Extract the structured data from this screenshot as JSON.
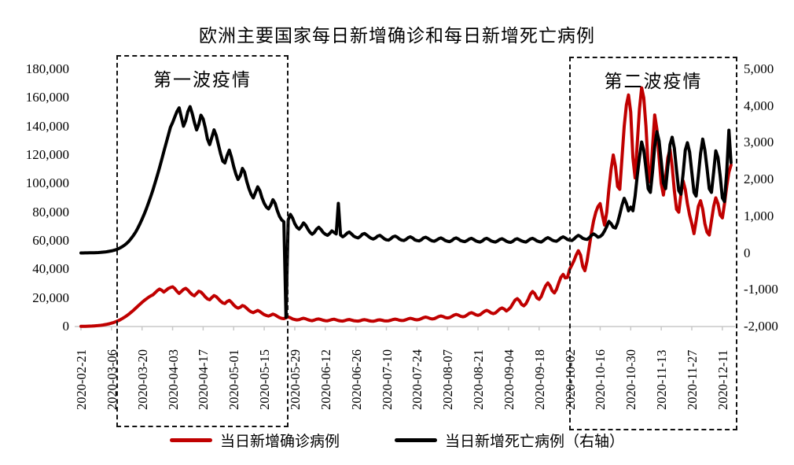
{
  "title": "欧洲主要国家每日新增确诊和每日新增死亡病例",
  "annotations": {
    "first_wave": "第一波疫情",
    "second_wave": "第二波疫情"
  },
  "legend": [
    {
      "label": "当日新增确诊病例",
      "color": "#C00000"
    },
    {
      "label": "当日新增死亡病例（右轴）",
      "color": "#000000"
    }
  ],
  "colors": {
    "cases_line": "#C00000",
    "deaths_line": "#000000",
    "axis_line": "#C9C9C9"
  },
  "chart_data": {
    "type": "line",
    "title": "欧洲主要国家每日新增确诊和每日新增死亡病例",
    "x_start_date": "2020-02-21",
    "x_step_days": 1,
    "x_tick_interval_days": 14,
    "x_tick_labels": [
      "2020-02-21",
      "2020-03-06",
      "2020-03-20",
      "2020-04-03",
      "2020-04-17",
      "2020-05-01",
      "2020-05-15",
      "2020-05-29",
      "2020-06-12",
      "2020-06-26",
      "2020-07-10",
      "2020-07-24",
      "2020-08-07",
      "2020-08-21",
      "2020-09-04",
      "2020-09-18",
      "2020-10-02",
      "2020-10-16",
      "2020-10-30",
      "2020-11-13",
      "2020-11-27",
      "2020-12-11"
    ],
    "left_axis": {
      "min": 0,
      "max": 180000,
      "tick_step": 20000,
      "tick_labels": [
        "180,000",
        "160,000",
        "140,000",
        "120,000",
        "100,000",
        "80,000",
        "60,000",
        "40,000",
        "20,000",
        "0"
      ]
    },
    "right_axis": {
      "min": -2000,
      "max": 5000,
      "tick_step": 1000,
      "tick_labels": [
        "5,000",
        "4,000",
        "3,000",
        "2,000",
        "1,000",
        "0",
        "-1,000",
        "-2,000"
      ]
    },
    "grid": false,
    "legend_position": "bottom",
    "series": [
      {
        "name": "当日新增确诊病例",
        "axis": "left",
        "color": "#C00000",
        "values": [
          120,
          140,
          170,
          210,
          260,
          330,
          420,
          530,
          670,
          840,
          1050,
          1300,
          1600,
          1950,
          2350,
          2800,
          3350,
          4000,
          4750,
          5600,
          6550,
          7600,
          8750,
          10000,
          11300,
          12700,
          14100,
          15500,
          16900,
          18200,
          19400,
          20500,
          21400,
          22200,
          23600,
          25100,
          26200,
          25400,
          24100,
          25300,
          26600,
          27300,
          27800,
          26600,
          24600,
          23200,
          24500,
          26000,
          26700,
          25500,
          23700,
          22300,
          21500,
          23100,
          24700,
          24100,
          22500,
          20700,
          19300,
          18700,
          20300,
          21700,
          20900,
          19300,
          17700,
          16500,
          16100,
          17500,
          18300,
          16900,
          15100,
          13700,
          12900,
          13500,
          14700,
          14100,
          12700,
          11300,
          10300,
          9700,
          10500,
          11300,
          10500,
          9300,
          8300,
          7700,
          7300,
          7900,
          8700,
          8100,
          7100,
          6300,
          5700,
          5500,
          6100,
          6700,
          6100,
          5300,
          4900,
          4600,
          4800,
          5400,
          5800,
          5400,
          4800,
          4300,
          4100,
          4500,
          5100,
          5300,
          4900,
          4400,
          4100,
          4000,
          4400,
          4900,
          5100,
          4700,
          4200,
          3900,
          3800,
          4200,
          4700,
          4900,
          4500,
          4100,
          3900,
          3800,
          4100,
          4600,
          4800,
          4500,
          4100,
          3800,
          3700,
          4000,
          4500,
          4700,
          4400,
          4000,
          3900,
          4000,
          4400,
          4900,
          5200,
          4900,
          4400,
          4200,
          4300,
          4800,
          5400,
          5700,
          5400,
          4900,
          4700,
          4900,
          5500,
          6200,
          6600,
          6200,
          5600,
          5300,
          5500,
          6200,
          7000,
          7400,
          7000,
          6300,
          6000,
          6300,
          7100,
          8000,
          8500,
          8000,
          7200,
          6800,
          7100,
          8100,
          9200,
          9700,
          9100,
          8200,
          7800,
          8300,
          9500,
          10700,
          11300,
          10600,
          9500,
          9000,
          9500,
          10900,
          12300,
          13000,
          12200,
          10900,
          12000,
          13500,
          16000,
          18500,
          19500,
          18000,
          15500,
          14500,
          16000,
          19000,
          22500,
          24500,
          23000,
          20000,
          19000,
          21000,
          25000,
          28500,
          30500,
          28500,
          25000,
          23500,
          26000,
          30500,
          34500,
          36500,
          34000,
          34300,
          40000,
          43000,
          46000,
          50000,
          53000,
          50000,
          42000,
          39000,
          46000,
          56000,
          66000,
          74000,
          80000,
          84000,
          86000,
          78000,
          71000,
          80000,
          96000,
          110000,
          120000,
          112000,
          98000,
          96000,
          118000,
          140000,
          155000,
          162000,
          150000,
          118000,
          104000,
          128000,
          152000,
          167000,
          160000,
          140000,
          112000,
          101000,
          125000,
          148000,
          138000,
          118000,
          100000,
          92000,
          104000,
          118000,
          124000,
          112000,
          95000,
          82000,
          80000,
          92000,
          102000,
          96000,
          86000,
          78000,
          72000,
          65000,
          74000,
          84000,
          88000,
          82000,
          72000,
          66000,
          64000,
          74000,
          84000,
          90000,
          86000,
          78000,
          76000,
          86000,
          98000,
          108000,
          113000
        ]
      },
      {
        "name": "当日新增死亡病例（右轴）",
        "axis": "right",
        "color": "#000000",
        "values": [
          2,
          2,
          3,
          4,
          5,
          6,
          8,
          10,
          13,
          17,
          22,
          28,
          36,
          46,
          58,
          72,
          90,
          112,
          140,
          175,
          215,
          265,
          325,
          395,
          475,
          565,
          670,
          790,
          920,
          1060,
          1210,
          1370,
          1540,
          1720,
          1910,
          2110,
          2320,
          2540,
          2760,
          2980,
          3200,
          3420,
          3550,
          3700,
          3850,
          3950,
          3700,
          3450,
          3600,
          3850,
          3980,
          3800,
          3550,
          3350,
          3500,
          3750,
          3650,
          3400,
          3100,
          2950,
          3150,
          3350,
          3200,
          2950,
          2700,
          2500,
          2450,
          2650,
          2800,
          2600,
          2350,
          2150,
          2000,
          2100,
          2300,
          2200,
          1950,
          1750,
          1600,
          1500,
          1650,
          1800,
          1700,
          1500,
          1350,
          1250,
          1200,
          1300,
          1450,
          1350,
          1150,
          1000,
          900,
          850,
          -1750,
          900,
          1050,
          950,
          800,
          700,
          650,
          720,
          820,
          760,
          650,
          560,
          510,
          560,
          650,
          700,
          640,
          560,
          510,
          480,
          530,
          600,
          560,
          520,
          1350,
          490,
          440,
          480,
          540,
          570,
          520,
          460,
          430,
          410,
          450,
          510,
          530,
          490,
          440,
          400,
          380,
          410,
          460,
          480,
          440,
          390,
          360,
          350,
          390,
          440,
          460,
          430,
          380,
          350,
          340,
          370,
          420,
          440,
          410,
          360,
          340,
          330,
          360,
          410,
          430,
          400,
          360,
          330,
          320,
          350,
          390,
          410,
          380,
          340,
          320,
          310,
          340,
          390,
          410,
          380,
          340,
          320,
          310,
          340,
          380,
          400,
          370,
          330,
          310,
          300,
          330,
          380,
          400,
          370,
          330,
          310,
          300,
          330,
          370,
          390,
          360,
          320,
          300,
          290,
          320,
          370,
          390,
          360,
          330,
          310,
          300,
          340,
          380,
          400,
          370,
          330,
          310,
          300,
          340,
          390,
          420,
          390,
          350,
          330,
          320,
          360,
          410,
          440,
          410,
          370,
          350,
          340,
          380,
          440,
          480,
          450,
          400,
          380,
          370,
          420,
          480,
          520,
          480,
          430,
          450,
          500,
          600,
          720,
          860,
          800,
          700,
          680,
          820,
          1050,
          1300,
          1490,
          1350,
          1150,
          1250,
          1150,
          1550,
          2100,
          2600,
          3020,
          2800,
          2300,
          1750,
          1650,
          2200,
          2900,
          3300,
          3050,
          2500,
          1900,
          1750,
          2350,
          2950,
          3150,
          2850,
          2250,
          1700,
          1600,
          2150,
          2800,
          3000,
          2750,
          2200,
          1650,
          1550,
          2100,
          2700,
          3100,
          2800,
          2300,
          1750,
          1650,
          2200,
          2780,
          2600,
          2100,
          1500,
          1400,
          2200,
          3340,
          2460
        ]
      }
    ]
  }
}
